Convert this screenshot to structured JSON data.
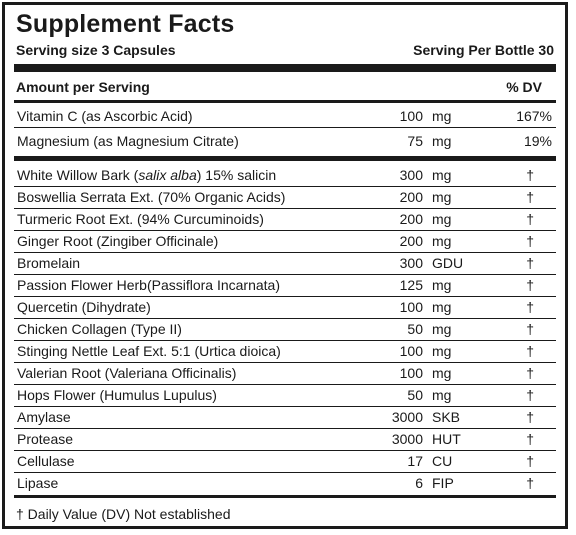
{
  "title": "Supplement Facts",
  "serving_size": "Serving size 3 Capsules",
  "servings_per": "Serving Per Bottle 30",
  "amount_header": "Amount per Serving",
  "dv_header": "% DV",
  "top_items": [
    {
      "name": "Vitamin C (as Ascorbic Acid)",
      "amount": "100",
      "unit": "mg",
      "dv": "167%"
    },
    {
      "name": "Magnesium (as Magnesium Citrate)",
      "amount": "75",
      "unit": "mg",
      "dv": "19%"
    }
  ],
  "items": [
    {
      "name_pre": "White Willow Bark (",
      "name_italic": "salix alba",
      "name_post": ") 15% salicin",
      "amount": "300",
      "unit": "mg",
      "dv": "†"
    },
    {
      "name": "Boswellia Serrata Ext. (70% Organic Acids)",
      "amount": "200",
      "unit": "mg",
      "dv": "†"
    },
    {
      "name": "Turmeric Root Ext. (94% Curcuminoids)",
      "amount": "200",
      "unit": "mg",
      "dv": "†"
    },
    {
      "name": "Ginger Root (Zingiber Officinale)",
      "amount": "200",
      "unit": "mg",
      "dv": "†"
    },
    {
      "name": "Bromelain",
      "amount": "300",
      "unit": "GDU",
      "dv": "†"
    },
    {
      "name": "Passion Flower Herb(Passiflora Incarnata)",
      "amount": "125",
      "unit": "mg",
      "dv": "†"
    },
    {
      "name": "Quercetin (Dihydrate)",
      "amount": "100",
      "unit": "mg",
      "dv": "†"
    },
    {
      "name": "Chicken Collagen (Type II)",
      "amount": "50",
      "unit": "mg",
      "dv": "†"
    },
    {
      "name": "Stinging Nettle Leaf Ext. 5:1 (Urtica dioica)",
      "amount": "100",
      "unit": "mg",
      "dv": "†"
    },
    {
      "name": "Valerian Root (Valeriana Officinalis)",
      "amount": "100",
      "unit": "mg",
      "dv": "†"
    },
    {
      "name": "Hops Flower (Humulus Lupulus)",
      "amount": "50",
      "unit": "mg",
      "dv": "†"
    },
    {
      "name": "Amylase",
      "amount": "3000",
      "unit": "SKB",
      "dv": "†"
    },
    {
      "name": "Protease",
      "amount": "3000",
      "unit": "HUT",
      "dv": "†"
    },
    {
      "name": "Cellulase",
      "amount": "17",
      "unit": "CU",
      "dv": "†"
    },
    {
      "name": "Lipase",
      "amount": "6",
      "unit": "FIP",
      "dv": "†"
    }
  ],
  "footnote": "† Daily Value (DV) Not established"
}
